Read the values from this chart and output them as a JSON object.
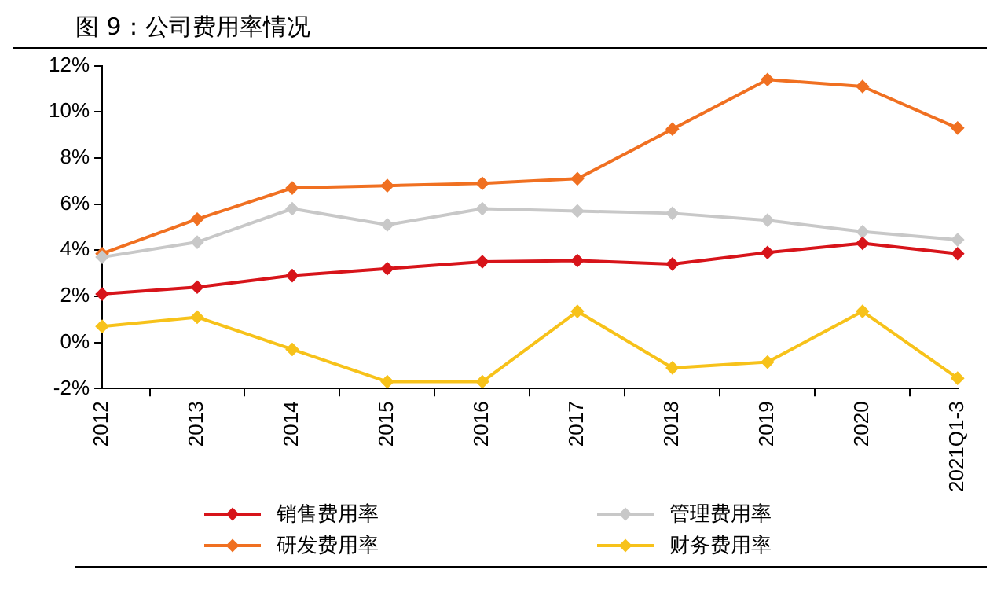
{
  "chart_data": {
    "type": "line",
    "title": "图 9：公司费用率情况",
    "categories": [
      "2012",
      "2013",
      "2014",
      "2015",
      "2016",
      "2017",
      "2018",
      "2019",
      "2020",
      "2021Q1-3"
    ],
    "series": [
      {
        "name": "销售费用率",
        "color": "#d7141a",
        "values": [
          2.1,
          2.4,
          2.9,
          3.2,
          3.5,
          3.55,
          3.4,
          3.9,
          4.3,
          3.85
        ]
      },
      {
        "name": "管理费用率",
        "color": "#c8c8c8",
        "values": [
          3.7,
          4.35,
          5.8,
          5.1,
          5.8,
          5.7,
          5.6,
          5.3,
          4.8,
          4.45
        ]
      },
      {
        "name": "研发费用率",
        "color": "#f07021",
        "values": [
          3.85,
          5.35,
          6.7,
          6.8,
          6.9,
          7.1,
          9.25,
          11.4,
          11.1,
          9.3
        ]
      },
      {
        "name": "财务费用率",
        "color": "#f7c21a",
        "values": [
          0.7,
          1.1,
          -0.3,
          -1.7,
          -1.7,
          1.35,
          -1.1,
          -0.85,
          1.35,
          -1.55
        ]
      }
    ],
    "ylim": [
      -2,
      12
    ],
    "yticks": [
      {
        "value": -2,
        "label": "-2%"
      },
      {
        "value": 0,
        "label": "0%"
      },
      {
        "value": 2,
        "label": "2%"
      },
      {
        "value": 4,
        "label": "4%"
      },
      {
        "value": 6,
        "label": "6%"
      },
      {
        "value": 8,
        "label": "8%"
      },
      {
        "value": 10,
        "label": "10%"
      },
      {
        "value": 12,
        "label": "12%"
      }
    ],
    "grid": false,
    "legend": "bottom",
    "marker": "diamond",
    "line_style": "solid"
  }
}
